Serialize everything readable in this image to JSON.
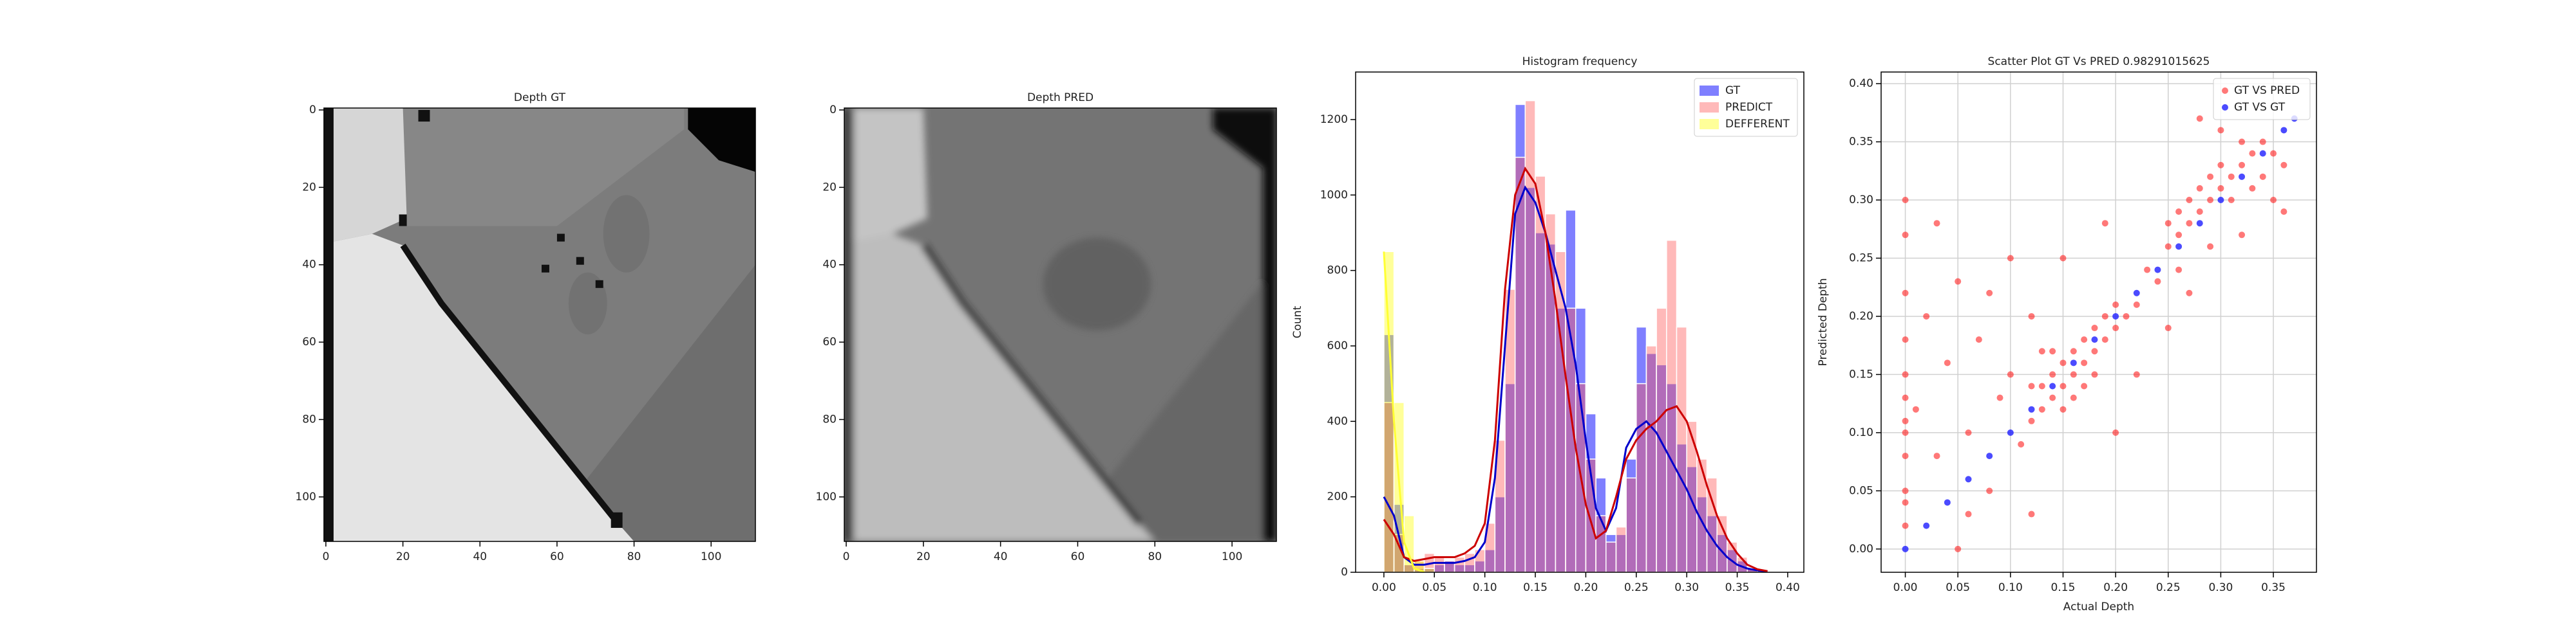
{
  "chart_data": [
    {
      "type": "image",
      "title": "Depth GT",
      "xlim": [
        -0.5,
        111.5
      ],
      "ylim": [
        111.5,
        -0.5
      ],
      "xticks": [
        0,
        20,
        40,
        60,
        80,
        100
      ],
      "yticks": [
        0,
        20,
        40,
        60,
        80,
        100
      ]
    },
    {
      "type": "image",
      "title": "Depth PRED",
      "xlim": [
        -0.5,
        111.5
      ],
      "ylim": [
        111.5,
        -0.5
      ],
      "xticks": [
        0,
        20,
        40,
        60,
        80,
        100
      ],
      "yticks": [
        0,
        20,
        40,
        60,
        80,
        100
      ]
    },
    {
      "type": "histogram",
      "title": "Histogram frequency",
      "ylabel": "Count",
      "bins": [
        0,
        0.01,
        0.02,
        0.03,
        0.04,
        0.05,
        0.06,
        0.07,
        0.08,
        0.09,
        0.1,
        0.11,
        0.12,
        0.13,
        0.14,
        0.15,
        0.16,
        0.17,
        0.18,
        0.19,
        0.2,
        0.21,
        0.22,
        0.23,
        0.24,
        0.25,
        0.26,
        0.27,
        0.28,
        0.29,
        0.3,
        0.31,
        0.32,
        0.33,
        0.34,
        0.35,
        0.36,
        0.37,
        0.38
      ],
      "xlim": [
        -0.028,
        0.416
      ],
      "ylim": [
        0,
        1326
      ],
      "xticks": [
        {
          "value": 0,
          "label": "0.00"
        },
        0.05,
        {
          "value": 0.1,
          "label": "0.10"
        },
        0.15,
        {
          "value": 0.2,
          "label": "0.20"
        },
        0.25,
        {
          "value": 0.3,
          "label": "0.30"
        },
        0.35,
        {
          "value": 0.4,
          "label": "0.40"
        }
      ],
      "yticks": [
        0,
        200,
        400,
        600,
        800,
        1000,
        1200
      ],
      "legend": "upper right",
      "kde_x": [
        0,
        0.01,
        0.02,
        0.03,
        0.04,
        0.05,
        0.06,
        0.07,
        0.08,
        0.09,
        0.1,
        0.11,
        0.12,
        0.13,
        0.14,
        0.15,
        0.16,
        0.17,
        0.18,
        0.19,
        0.2,
        0.21,
        0.22,
        0.23,
        0.24,
        0.25,
        0.26,
        0.27,
        0.28,
        0.29,
        0.3,
        0.31,
        0.32,
        0.33,
        0.34,
        0.35,
        0.36,
        0.37,
        0.38
      ],
      "series": [
        {
          "name": "GT",
          "color": "rgba(0,0,255,0.5)",
          "line_color": "#0000cc",
          "values": [
            630,
            180,
            20,
            10,
            10,
            20,
            30,
            20,
            20,
            30,
            60,
            200,
            500,
            1240,
            1020,
            900,
            870,
            700,
            960,
            700,
            420,
            250,
            100,
            100,
            300,
            650,
            580,
            550,
            500,
            340,
            280,
            200,
            150,
            100,
            60,
            30,
            10,
            5
          ],
          "kde": [
            200,
            150,
            40,
            20,
            20,
            25,
            25,
            25,
            30,
            40,
            80,
            250,
            600,
            950,
            1020,
            980,
            900,
            800,
            700,
            550,
            350,
            170,
            110,
            170,
            330,
            380,
            400,
            370,
            320,
            270,
            220,
            160,
            110,
            70,
            40,
            20,
            10,
            5,
            2
          ]
        },
        {
          "name": "PREDICT",
          "color": "rgba(255,80,80,0.4)",
          "line_color": "#cc0000",
          "values": [
            450,
            100,
            20,
            30,
            50,
            40,
            30,
            40,
            50,
            60,
            130,
            350,
            750,
            1100,
            1250,
            1050,
            950,
            850,
            700,
            500,
            300,
            150,
            80,
            120,
            250,
            500,
            600,
            700,
            880,
            650,
            400,
            300,
            250,
            150,
            80,
            40,
            10,
            5
          ],
          "kde": [
            140,
            100,
            40,
            30,
            35,
            40,
            40,
            40,
            50,
            70,
            130,
            350,
            750,
            1000,
            1070,
            1030,
            900,
            720,
            520,
            330,
            180,
            90,
            110,
            200,
            300,
            350,
            380,
            400,
            430,
            440,
            400,
            320,
            230,
            150,
            90,
            50,
            20,
            8,
            3
          ]
        },
        {
          "name": "DEFFERENT",
          "color": "rgba(255,255,0,0.4)",
          "line_color": "#ffff33",
          "values": [
            850,
            450,
            150,
            30,
            10,
            0,
            0,
            0,
            0,
            0,
            0,
            0,
            0,
            0,
            0,
            0,
            0,
            0,
            0,
            0,
            0,
            0,
            0,
            0,
            0,
            0,
            0,
            0,
            0,
            0,
            0,
            0,
            0,
            0,
            0,
            0,
            0,
            0
          ],
          "kde": [
            850,
            400,
            80,
            10,
            1,
            null,
            null,
            null,
            null,
            null,
            null,
            null,
            null,
            null,
            null,
            null,
            null,
            null,
            null,
            null,
            null,
            null,
            null,
            null,
            null,
            null,
            null,
            null,
            null,
            null,
            null,
            null,
            null,
            null,
            null,
            null,
            null,
            null,
            null
          ]
        }
      ]
    },
    {
      "type": "scatter",
      "title": "Scatter Plot GT Vs PRED 0.98291015625",
      "xlabel": "Actual Depth",
      "ylabel": "Predicted Depth",
      "xlim": [
        -0.023,
        0.391
      ],
      "ylim": [
        -0.02,
        0.41
      ],
      "xticks": [
        {
          "value": 0,
          "label": "0.00"
        },
        0.05,
        {
          "value": 0.1,
          "label": "0.10"
        },
        0.15,
        {
          "value": 0.2,
          "label": "0.20"
        },
        0.25,
        {
          "value": 0.3,
          "label": "0.30"
        },
        0.35
      ],
      "yticks": [
        {
          "value": 0,
          "label": "0.00"
        },
        0.05,
        {
          "value": 0.1,
          "label": "0.10"
        },
        0.15,
        {
          "value": 0.2,
          "label": "0.20"
        },
        0.25,
        {
          "value": 0.3,
          "label": "0.30"
        },
        0.35,
        {
          "value": 0.4,
          "label": "0.40"
        }
      ],
      "grid": true,
      "legend": "upper right",
      "series": [
        {
          "name": "GT VS PRED",
          "color": "rgba(255,30,30,0.6)",
          "x": [
            0,
            0,
            0,
            0,
            0,
            0,
            0,
            0,
            0,
            0,
            0,
            0,
            0.01,
            0.02,
            0.03,
            0.04,
            0.05,
            0.06,
            0.07,
            0.08,
            0.09,
            0.1,
            0.11,
            0.12,
            0.03,
            0.08,
            0.06,
            0.1,
            0.12,
            0.13,
            0.13,
            0.14,
            0.14,
            0.15,
            0.15,
            0.15,
            0.16,
            0.16,
            0.17,
            0.17,
            0.18,
            0.18,
            0.19,
            0.19,
            0.2,
            0.2,
            0.21,
            0.14,
            0.16,
            0.18,
            0.13,
            0.17,
            0.12,
            0.22,
            0.23,
            0.24,
            0.25,
            0.25,
            0.26,
            0.26,
            0.27,
            0.27,
            0.28,
            0.28,
            0.29,
            0.29,
            0.3,
            0.3,
            0.31,
            0.31,
            0.32,
            0.32,
            0.33,
            0.33,
            0.34,
            0.34,
            0.35,
            0.35,
            0.36,
            0.3,
            0.28,
            0.26,
            0.32,
            0.29,
            0.36,
            0.2,
            0.22,
            0.25,
            0.05,
            0.15,
            0.19,
            0.12,
            0.27
          ],
          "y": [
            0.02,
            0.05,
            0.08,
            0.11,
            0.13,
            0.15,
            0.18,
            0.22,
            0.27,
            0.3,
            0.04,
            0.1,
            0.12,
            0.2,
            0.08,
            0.16,
            0.23,
            0.1,
            0.18,
            0.05,
            0.13,
            0.25,
            0.09,
            0.2,
            0.28,
            0.22,
            0.03,
            0.15,
            0.11,
            0.14,
            0.12,
            0.15,
            0.13,
            0.16,
            0.14,
            0.12,
            0.17,
            0.15,
            0.16,
            0.18,
            0.17,
            0.19,
            0.18,
            0.2,
            0.19,
            0.21,
            0.2,
            0.17,
            0.13,
            0.15,
            0.17,
            0.14,
            0.14,
            0.21,
            0.24,
            0.23,
            0.26,
            0.28,
            0.27,
            0.29,
            0.28,
            0.3,
            0.29,
            0.31,
            0.3,
            0.32,
            0.31,
            0.33,
            0.32,
            0.3,
            0.33,
            0.35,
            0.34,
            0.31,
            0.35,
            0.32,
            0.34,
            0.3,
            0.33,
            0.36,
            0.37,
            0.24,
            0.27,
            0.26,
            0.29,
            0.1,
            0.15,
            0.19,
            0,
            0.25,
            0.28,
            0.03,
            0.22
          ]
        },
        {
          "name": "GT VS GT",
          "color": "rgba(30,30,255,0.8)",
          "x": [
            0,
            0.02,
            0.04,
            0.06,
            0.08,
            0.1,
            0.12,
            0.14,
            0.16,
            0.18,
            0.2,
            0.22,
            0.24,
            0.26,
            0.28,
            0.3,
            0.32,
            0.34,
            0.36,
            0.37
          ],
          "y": [
            0,
            0.02,
            0.04,
            0.06,
            0.08,
            0.1,
            0.12,
            0.14,
            0.16,
            0.18,
            0.2,
            0.22,
            0.24,
            0.26,
            0.28,
            0.3,
            0.32,
            0.34,
            0.36,
            0.37
          ]
        }
      ]
    }
  ]
}
